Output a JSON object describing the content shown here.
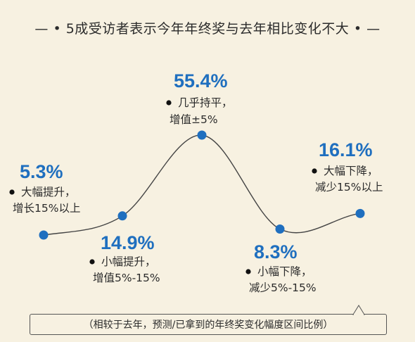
{
  "title": "— • 5成受访者表示今年年终奖与去年相比变化不大 • —",
  "note": "（相较于去年，预测/已拿到的年终奖变化幅度区间比例）",
  "chart_data": {
    "type": "line",
    "categories": [
      "大幅提升，增长15%以上",
      "小幅提升，增值5%-15%",
      "几乎持平，增值±5%",
      "小幅下降，减少5%-15%",
      "大幅下降，减少15%以上"
    ],
    "values": [
      5.3,
      14.9,
      55.4,
      8.3,
      16.1
    ],
    "points": [
      {
        "value": 5.3,
        "value_label": "5.3%",
        "desc": [
          "大幅提升，",
          "增长15%以上"
        ]
      },
      {
        "value": 14.9,
        "value_label": "14.9%",
        "desc": [
          "小幅提升，",
          "增值5%-15%"
        ]
      },
      {
        "value": 55.4,
        "value_label": "55.4%",
        "desc": [
          "几乎持平，",
          "增值±5%"
        ]
      },
      {
        "value": 8.3,
        "value_label": "8.3%",
        "desc": [
          "小幅下降，",
          "减少5%-15%"
        ]
      },
      {
        "value": 16.1,
        "value_label": "16.1%",
        "desc": [
          "大幅下降，",
          "减少15%以上"
        ]
      }
    ],
    "colors": {
      "accent": "#1f6fbf",
      "line": "#444444",
      "text": "#2b2b2b",
      "background": "#f7f1e1"
    }
  }
}
